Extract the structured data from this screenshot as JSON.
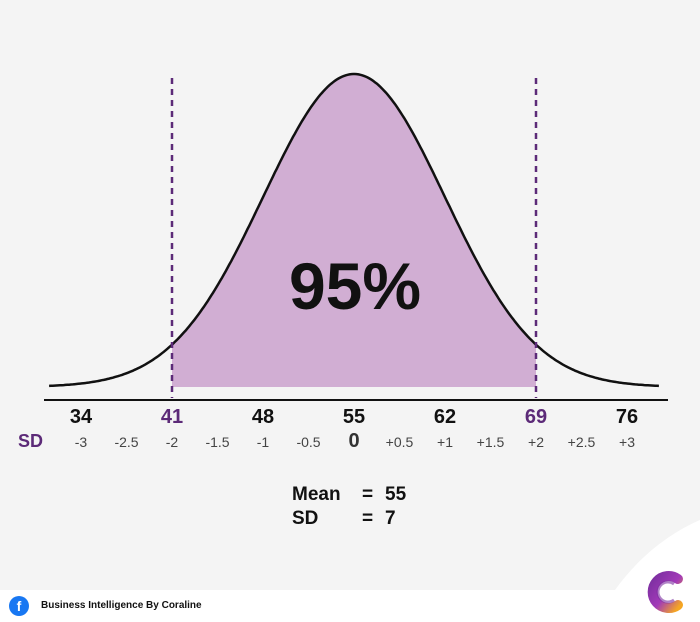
{
  "chart_data": {
    "type": "area",
    "title": "",
    "xlabel": "",
    "ylabel": "",
    "mean": 55,
    "sd": 7,
    "shaded_range": [
      41,
      69
    ],
    "shaded_percent_label": "95%",
    "value_ticks": [
      {
        "value": 34,
        "label": "34",
        "highlight": false
      },
      {
        "value": 41,
        "label": "41",
        "highlight": true
      },
      {
        "value": 48,
        "label": "48",
        "highlight": false
      },
      {
        "value": 55,
        "label": "55",
        "highlight": false
      },
      {
        "value": 62,
        "label": "62",
        "highlight": false
      },
      {
        "value": 69,
        "label": "69",
        "highlight": true
      },
      {
        "value": 76,
        "label": "76",
        "highlight": false
      }
    ],
    "sd_axis_label": "SD",
    "sd_ticks": [
      {
        "value": -3,
        "label": "-3"
      },
      {
        "value": -2.5,
        "label": "-2.5"
      },
      {
        "value": -2,
        "label": "-2"
      },
      {
        "value": -1.5,
        "label": "-1.5"
      },
      {
        "value": -1,
        "label": "-1"
      },
      {
        "value": -0.5,
        "label": "-0.5"
      },
      {
        "value": 0,
        "label": "0"
      },
      {
        "value": 0.5,
        "label": "+0.5"
      },
      {
        "value": 1,
        "label": "+1"
      },
      {
        "value": 1.5,
        "label": "+1.5"
      },
      {
        "value": 2,
        "label": "+2"
      },
      {
        "value": 2.5,
        "label": "+2.5"
      },
      {
        "value": 3,
        "label": "+3"
      }
    ],
    "x_range": [
      -3.35,
      3.35
    ],
    "colors": {
      "fill": "#d1aed3",
      "curve": "#111111",
      "dashed_lines": "#5c2a78",
      "axis": "#111111"
    }
  },
  "stats": {
    "mean_label": "Mean",
    "mean_eq": "=",
    "mean_value": "55",
    "sd_label": "SD",
    "sd_eq": "=",
    "sd_value": "7"
  },
  "footer": {
    "icon": "facebook-icon",
    "icon_glyph": "f",
    "credit": "Business Intelligence By Coraline"
  },
  "logo": {
    "icon": "coraline-c-logo-icon",
    "colors": [
      "#7b2fa0",
      "#f5a623"
    ]
  }
}
